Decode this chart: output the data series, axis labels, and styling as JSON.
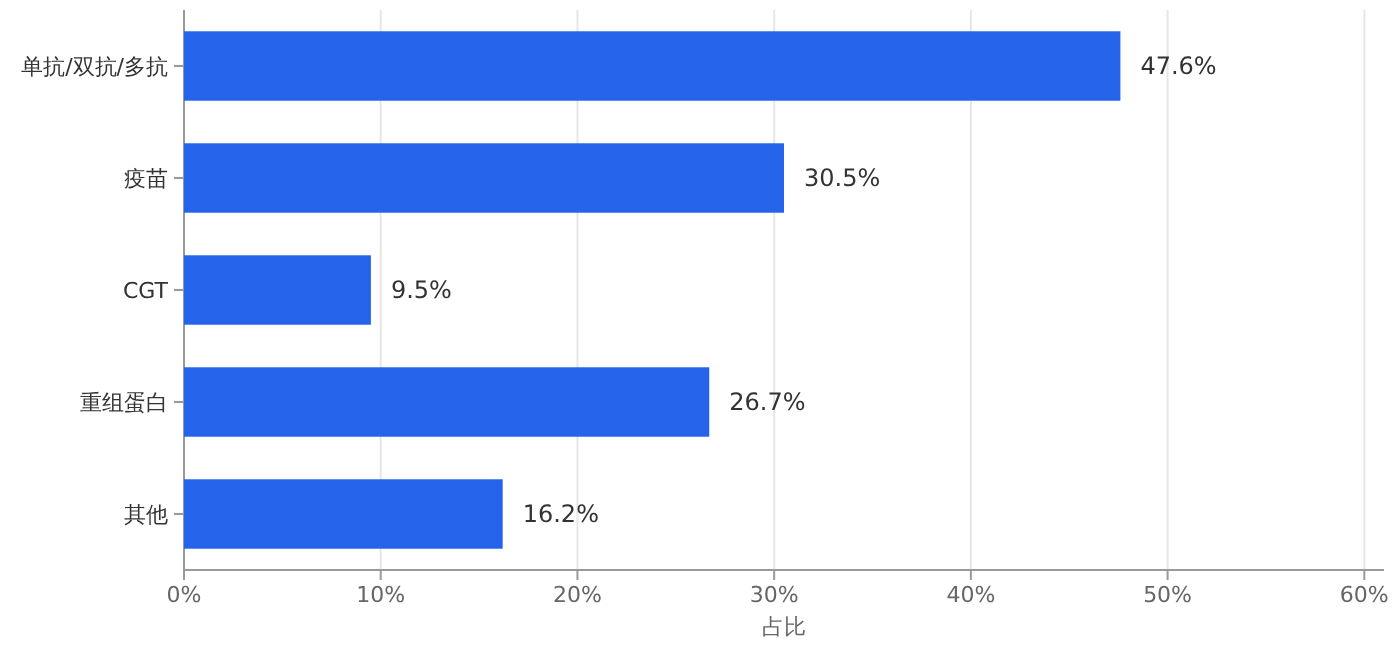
{
  "chart_data": {
    "type": "bar",
    "orientation": "horizontal",
    "categories": [
      "单抗/双抗/多抗",
      "疫苗",
      "CGT",
      "重组蛋白",
      "其他"
    ],
    "values": [
      47.6,
      30.5,
      9.5,
      26.7,
      16.2
    ],
    "value_labels": [
      "47.6%",
      "30.5%",
      "9.5%",
      "26.7%",
      "16.2%"
    ],
    "color": "#2563eb",
    "xlabel": "占比",
    "xlim": [
      0,
      61
    ],
    "xticks": [
      {
        "value": 0,
        "label": "0%"
      },
      {
        "value": 10,
        "label": "10%"
      },
      {
        "value": 20,
        "label": "20%"
      },
      {
        "value": 30,
        "label": "30%"
      },
      {
        "value": 40,
        "label": "40%"
      },
      {
        "value": 50,
        "label": "50%"
      },
      {
        "value": 60,
        "label": "60%"
      }
    ],
    "grid": "x"
  }
}
